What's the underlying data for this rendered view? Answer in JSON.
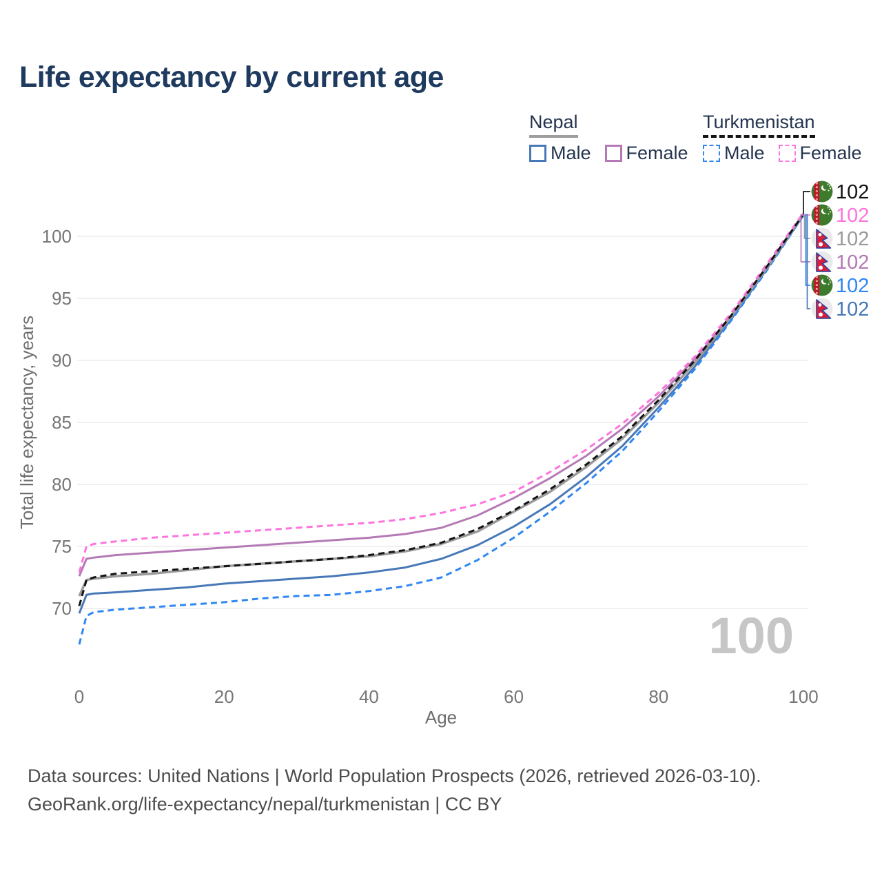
{
  "title": "Life expectancy by current age",
  "legend": {
    "groups": [
      {
        "name": "Nepal",
        "line_style": "solid",
        "underline_color": "#9e9e9e",
        "items": [
          {
            "label": "Male",
            "color": "#4878b8"
          },
          {
            "label": "Female",
            "color": "#b57ab5"
          }
        ]
      },
      {
        "name": "Turkmenistan",
        "line_style": "dashed",
        "underline_color": "#141414",
        "items": [
          {
            "label": "Male",
            "color": "#3087f2"
          },
          {
            "label": "Female",
            "color": "#fc74de"
          }
        ]
      }
    ]
  },
  "watermark": "100",
  "footer": {
    "line1": "Data sources: United Nations | World Population Prospects (2026, retrieved 2026-03-10).",
    "line2": "GeoRank.org/life-expectancy/nepal/turkmenistan | CC BY"
  },
  "chart_data": {
    "type": "line",
    "title": "Life expectancy by current age",
    "xlabel": "Age",
    "ylabel": "Total life expectancy, years",
    "xlim": [
      0,
      100
    ],
    "ylim": [
      66,
      103
    ],
    "xticks": [
      0,
      20,
      40,
      60,
      80,
      100
    ],
    "yticks": [
      70,
      75,
      80,
      85,
      90,
      95,
      100
    ],
    "grid": "horizontal",
    "tick_color": "#767676",
    "grid_color": "#ebebeb",
    "axis_title_color": "#6e6e6e",
    "watermark_color": "#c6c6c6",
    "x": [
      0,
      1,
      2,
      5,
      10,
      15,
      20,
      25,
      30,
      35,
      40,
      45,
      50,
      55,
      60,
      65,
      70,
      75,
      80,
      85,
      90,
      95,
      100
    ],
    "series": [
      {
        "name": "Turkmenistan Total",
        "flag": "turkmenistan",
        "dash": true,
        "color": "#141414",
        "width": 3,
        "end_label": "102",
        "values": [
          70.2,
          72.3,
          72.5,
          72.8,
          73.0,
          73.2,
          73.4,
          73.6,
          73.8,
          74.0,
          74.3,
          74.7,
          75.3,
          76.4,
          77.9,
          79.6,
          81.6,
          83.9,
          86.8,
          90.0,
          93.6,
          97.6,
          101.8
        ]
      },
      {
        "name": "Turkmenistan Female",
        "flag": "turkmenistan",
        "dash": true,
        "color": "#fc74de",
        "width": 3,
        "end_label": "102",
        "values": [
          72.9,
          75.0,
          75.2,
          75.4,
          75.7,
          75.9,
          76.1,
          76.3,
          76.5,
          76.7,
          76.9,
          77.2,
          77.7,
          78.4,
          79.4,
          81.0,
          82.8,
          84.9,
          87.4,
          90.3,
          93.8,
          97.8,
          101.9
        ]
      },
      {
        "name": "Nepal Total",
        "flag": "nepal",
        "dash": false,
        "color": "#9b9b9b",
        "width": 3.5,
        "end_label": "102",
        "values": [
          71.0,
          72.3,
          72.4,
          72.6,
          72.8,
          73.1,
          73.4,
          73.6,
          73.8,
          74.0,
          74.2,
          74.6,
          75.2,
          76.2,
          77.8,
          79.4,
          81.4,
          83.7,
          86.6,
          89.8,
          93.5,
          97.5,
          101.8
        ]
      },
      {
        "name": "Nepal Female",
        "flag": "nepal",
        "dash": false,
        "color": "#b57ab5",
        "width": 3,
        "end_label": "102",
        "values": [
          72.6,
          74.0,
          74.1,
          74.3,
          74.5,
          74.7,
          74.9,
          75.1,
          75.3,
          75.5,
          75.7,
          76.0,
          76.5,
          77.5,
          78.9,
          80.5,
          82.3,
          84.5,
          87.1,
          90.1,
          93.6,
          97.6,
          101.8
        ]
      },
      {
        "name": "Turkmenistan Male",
        "flag": "turkmenistan",
        "dash": true,
        "color": "#3087f2",
        "width": 3,
        "end_label": "102",
        "values": [
          67.1,
          69.4,
          69.7,
          69.9,
          70.1,
          70.3,
          70.5,
          70.8,
          71.0,
          71.1,
          71.4,
          71.8,
          72.5,
          73.9,
          75.7,
          77.8,
          80.1,
          82.7,
          85.9,
          89.3,
          93.2,
          97.3,
          101.7
        ]
      },
      {
        "name": "Nepal Male",
        "flag": "nepal",
        "dash": false,
        "color": "#4878b8",
        "width": 3,
        "end_label": "102",
        "values": [
          69.6,
          71.1,
          71.2,
          71.3,
          71.5,
          71.7,
          72.0,
          72.2,
          72.4,
          72.6,
          72.9,
          73.3,
          74.0,
          75.1,
          76.6,
          78.4,
          80.6,
          83.1,
          86.2,
          89.5,
          93.3,
          97.4,
          101.7
        ]
      }
    ],
    "legend_position": "top-right"
  }
}
